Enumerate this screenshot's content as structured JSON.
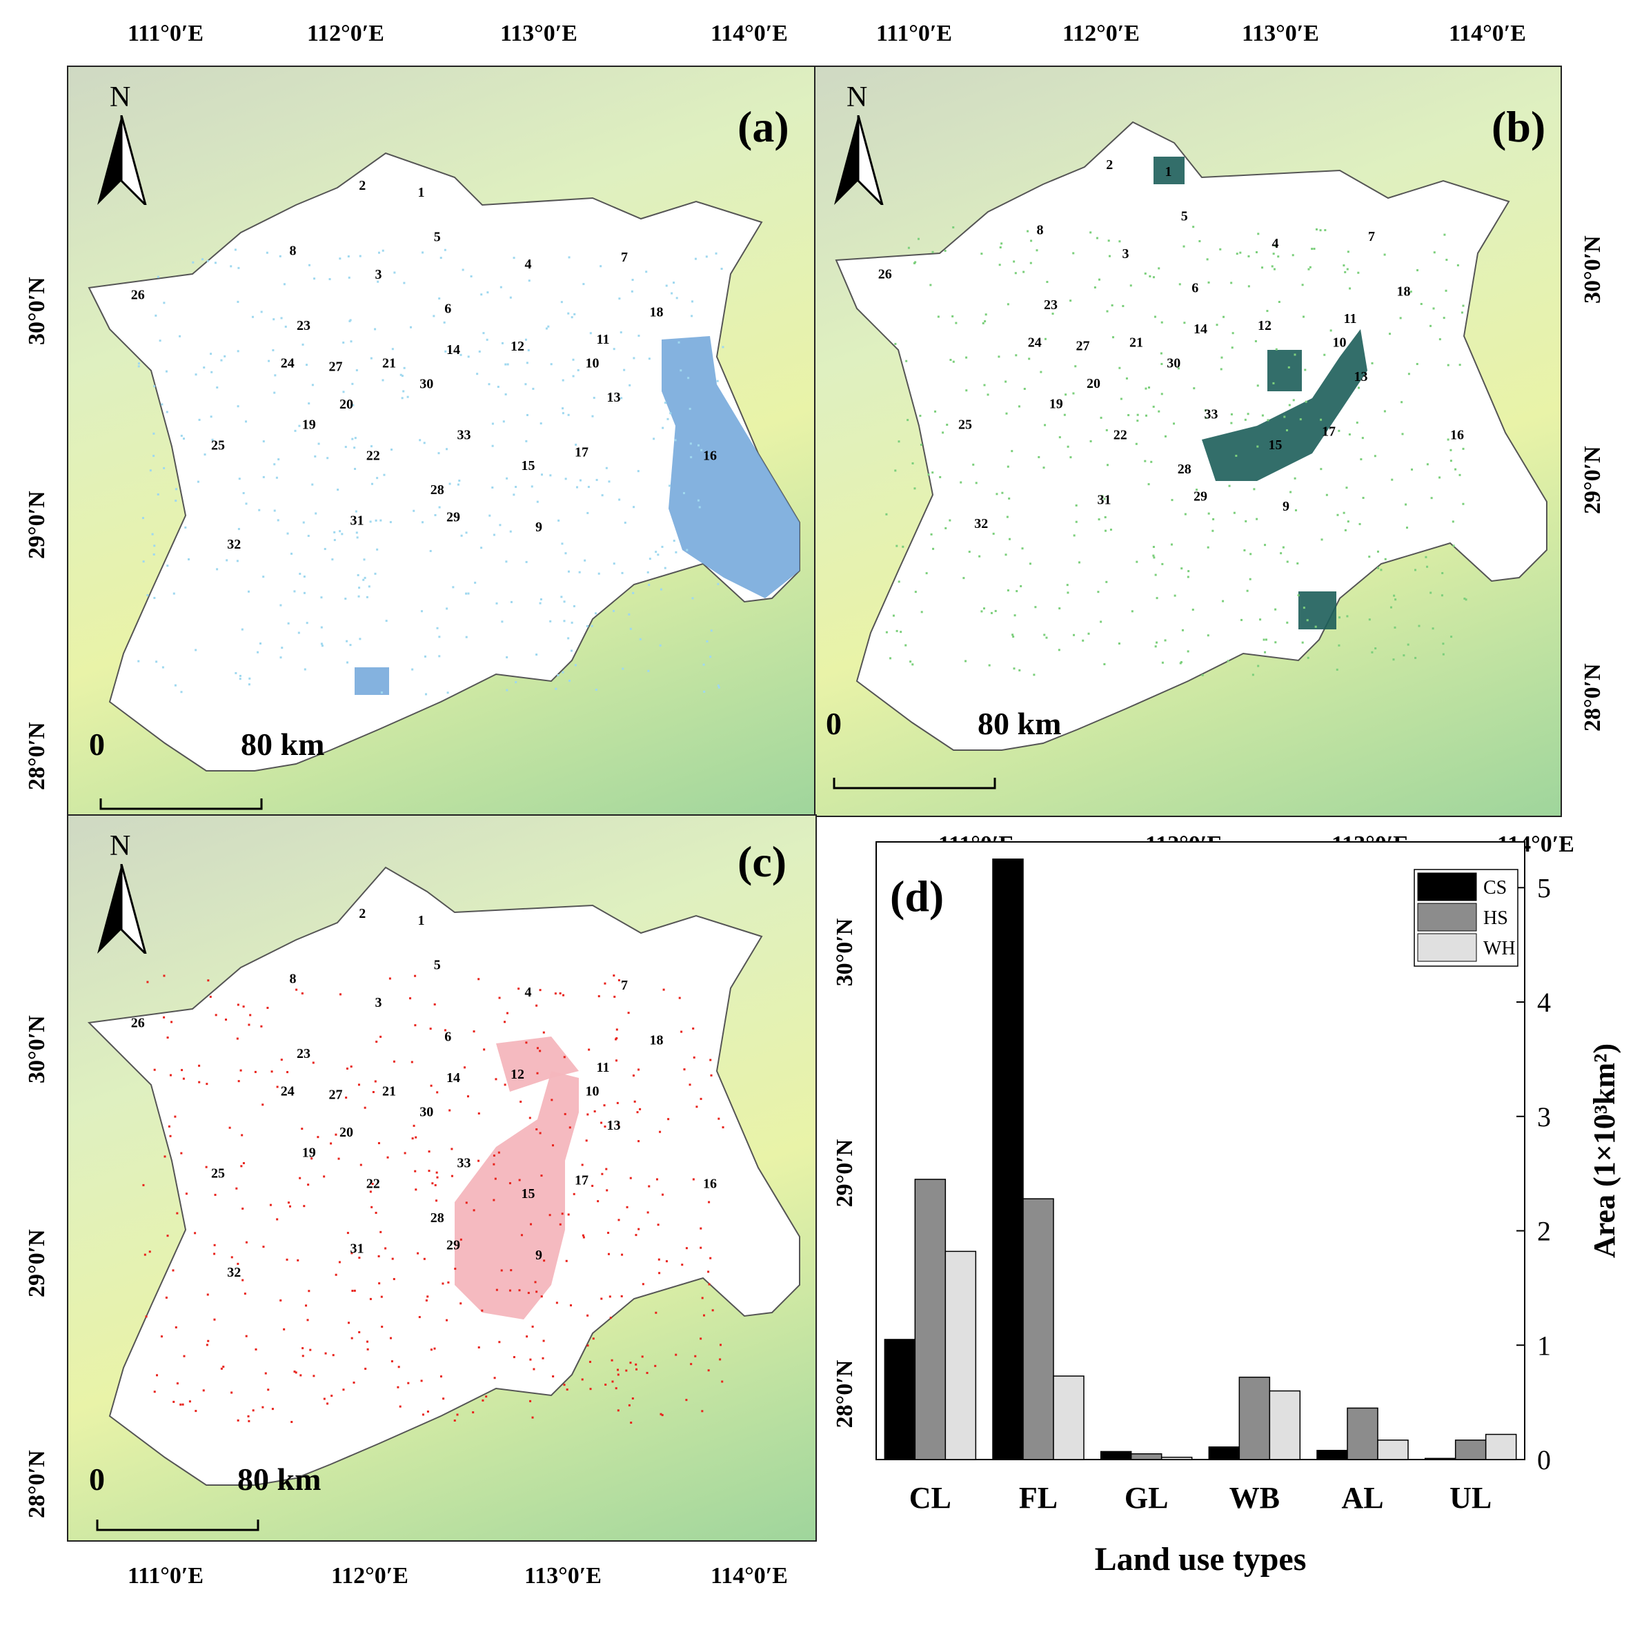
{
  "panels": {
    "a": {
      "label": "(a)",
      "north": "N",
      "scale_zero": "0",
      "scale_end": "80 km",
      "top_lons": [
        "111°0′E",
        "112°0′E",
        "113°0′E",
        "114°0′E"
      ],
      "lats": [
        "30°0′N",
        "29°0′N",
        "28°0′N"
      ],
      "overlay_color": "#6fa5d9",
      "dot_color": "#9fd8ef"
    },
    "b": {
      "label": "(b)",
      "north": "N",
      "scale_zero": "0",
      "scale_end": "80 km",
      "top_lons": [
        "111°0′E",
        "112°0′E",
        "113°0′E",
        "114°0′E"
      ],
      "bottom_lons": [
        "111°0′E",
        "112°0′E",
        "113°0′E",
        "114°0′E"
      ],
      "lats": [
        "30°0′N",
        "29°0′N",
        "28°0′N"
      ],
      "overlay_color": "#1d5e5a",
      "dot_color": "#7ccf7c"
    },
    "c": {
      "label": "(c)",
      "north": "N",
      "scale_zero": "0",
      "scale_end": "80 km",
      "bottom_lons": [
        "111°0′E",
        "112°0′E",
        "113°0′E",
        "114°0′E"
      ],
      "lats": [
        "30°0′N",
        "29°0′N",
        "28°0′N"
      ],
      "overlay_color": "#f4b6bd",
      "dot_color": "#e8231c"
    }
  },
  "regions": [
    "1",
    "2",
    "3",
    "4",
    "5",
    "6",
    "7",
    "8",
    "9",
    "10",
    "11",
    "12",
    "13",
    "14",
    "15",
    "16",
    "17",
    "18",
    "19",
    "20",
    "21",
    "22",
    "23",
    "24",
    "25",
    "26",
    "27",
    "28",
    "29",
    "30",
    "31",
    "32",
    "33"
  ],
  "chart_data": {
    "type": "bar",
    "panel_label": "(d)",
    "categories": [
      "CL",
      "FL",
      "GL",
      "WB",
      "AL",
      "UL"
    ],
    "series": [
      {
        "name": "CS",
        "color": "#000000",
        "values": [
          1.05,
          5.25,
          0.07,
          0.11,
          0.08,
          0.01
        ]
      },
      {
        "name": "HS",
        "color": "#8c8c8c",
        "values": [
          2.45,
          2.28,
          0.05,
          0.72,
          0.45,
          0.17
        ]
      },
      {
        "name": "WH",
        "color": "#e0e0e0",
        "values": [
          1.82,
          0.73,
          0.02,
          0.6,
          0.17,
          0.22
        ]
      }
    ],
    "xlabel": "Land use types",
    "ylabel": "Area (1×10³km²)",
    "ylim": [
      0,
      5.4
    ],
    "yticks": [
      "0",
      "1",
      "2",
      "3",
      "4",
      "5"
    ],
    "left_lats": [
      "30°0′N",
      "29°0′N",
      "28°0′N"
    ],
    "legend_position": "top-right"
  }
}
